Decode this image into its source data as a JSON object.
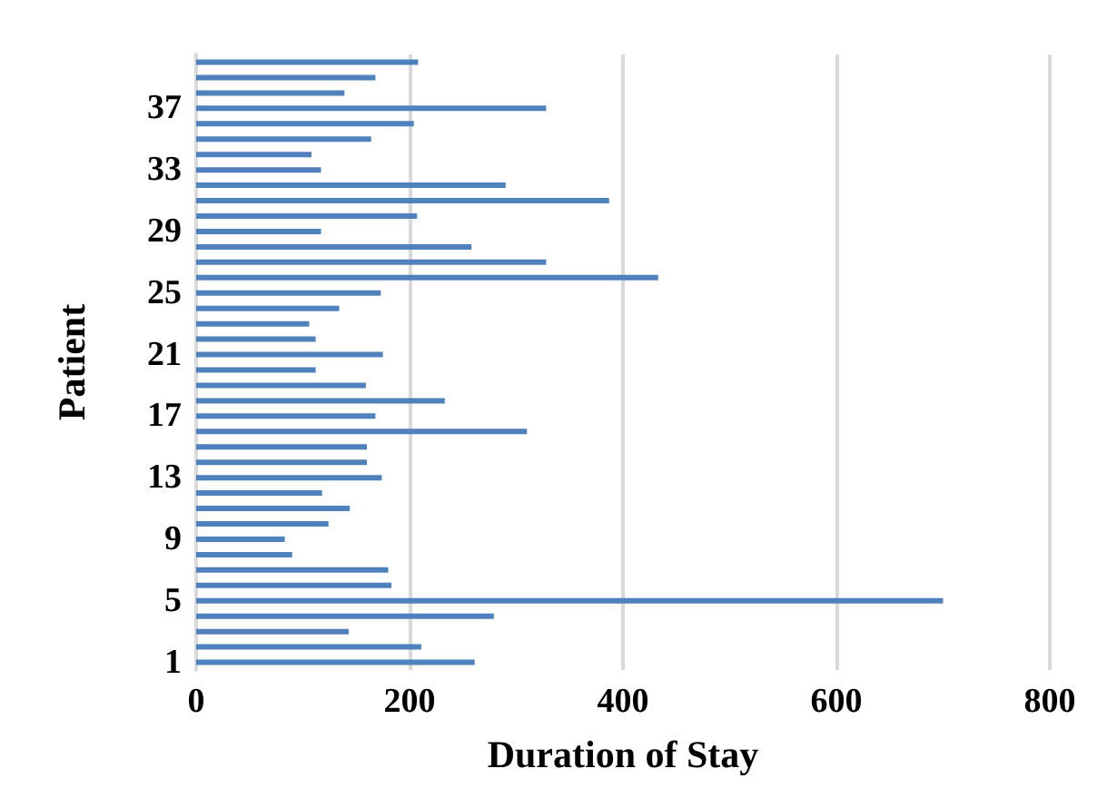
{
  "chart_data": {
    "type": "bar",
    "orientation": "horizontal",
    "xlabel": "Duration of Stay",
    "ylabel": "Patient",
    "categories": [
      null,
      null,
      null,
      "37",
      null,
      null,
      null,
      "33",
      null,
      null,
      null,
      "29",
      null,
      null,
      null,
      "25",
      null,
      null,
      null,
      "21",
      null,
      null,
      null,
      "17",
      null,
      null,
      null,
      "13",
      null,
      null,
      null,
      "9",
      null,
      null,
      null,
      "5",
      null,
      null,
      null,
      "1"
    ],
    "values": [
      208,
      168,
      139,
      328,
      204,
      164,
      108,
      117,
      290,
      387,
      207,
      117,
      258,
      328,
      433,
      173,
      134,
      106,
      112,
      175,
      112,
      159,
      233,
      168,
      310,
      160,
      160,
      174,
      118,
      144,
      124,
      83,
      90,
      180,
      183,
      700,
      279,
      143,
      211,
      261
    ],
    "color": "#4f81bd",
    "xlim": [
      0,
      800
    ],
    "xticks": [
      0,
      200,
      400,
      600,
      800
    ],
    "grid": "x"
  }
}
